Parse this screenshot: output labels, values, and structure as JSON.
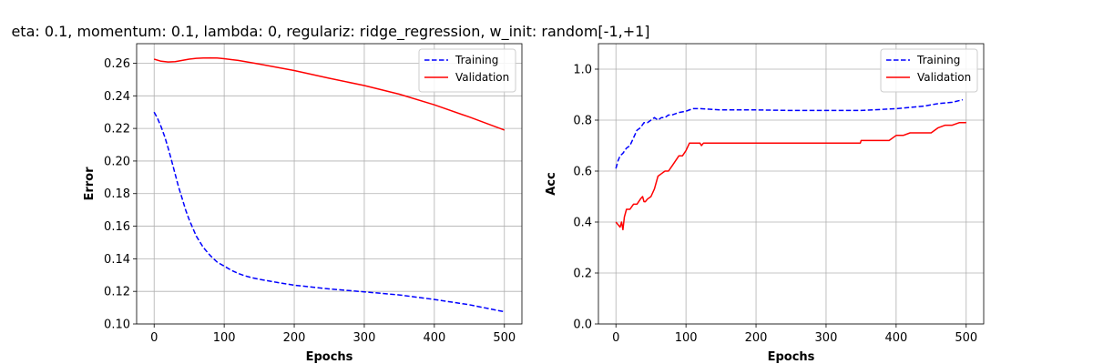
{
  "figure": {
    "title": "eta: 0.1, momentum: 0.1, lambda: 0, regulariz: ridge_regression, w_init: random[-1,+1]"
  },
  "chart_data": [
    {
      "type": "line",
      "xlabel": "Epochs",
      "ylabel": "Error",
      "xlim": [
        -25,
        525
      ],
      "ylim": [
        0.1,
        0.272
      ],
      "xticks": [
        0,
        100,
        200,
        300,
        400,
        500
      ],
      "yticks": [
        0.1,
        0.12,
        0.14,
        0.16,
        0.18,
        0.2,
        0.22,
        0.24,
        0.26
      ],
      "ytick_decimals": 2,
      "grid": true,
      "legend": "top-right",
      "series": [
        {
          "name": "Training",
          "color": "#0000ff",
          "style": "dashed",
          "x": [
            0,
            5,
            10,
            15,
            20,
            25,
            30,
            35,
            40,
            45,
            50,
            60,
            70,
            80,
            90,
            100,
            110,
            120,
            130,
            140,
            150,
            175,
            200,
            250,
            300,
            350,
            400,
            450,
            500
          ],
          "y": [
            0.23,
            0.226,
            0.221,
            0.215,
            0.208,
            0.2,
            0.192,
            0.184,
            0.177,
            0.17,
            0.164,
            0.154,
            0.147,
            0.142,
            0.138,
            0.1355,
            0.133,
            0.131,
            0.1295,
            0.1283,
            0.1274,
            0.1255,
            0.1238,
            0.1215,
            0.1197,
            0.1178,
            0.115,
            0.1118,
            0.1075
          ]
        },
        {
          "name": "Validation",
          "color": "#ff0000",
          "style": "solid",
          "x": [
            0,
            10,
            20,
            30,
            40,
            50,
            60,
            70,
            80,
            90,
            100,
            120,
            150,
            200,
            250,
            300,
            350,
            400,
            450,
            500
          ],
          "y": [
            0.2625,
            0.2612,
            0.2608,
            0.261,
            0.2617,
            0.2625,
            0.263,
            0.2632,
            0.2633,
            0.2632,
            0.2628,
            0.2617,
            0.2595,
            0.2555,
            0.2508,
            0.2463,
            0.241,
            0.2345,
            0.227,
            0.219
          ]
        }
      ]
    },
    {
      "type": "line",
      "xlabel": "Epochs",
      "ylabel": "Acc",
      "xlim": [
        -25,
        525
      ],
      "ylim": [
        0.0,
        1.1
      ],
      "xticks": [
        0,
        100,
        200,
        300,
        400,
        500
      ],
      "yticks": [
        0.0,
        0.2,
        0.4,
        0.6,
        0.8,
        1.0
      ],
      "ytick_decimals": 1,
      "grid": true,
      "legend": "top-right",
      "series": [
        {
          "name": "Training",
          "color": "#0000ff",
          "style": "dashed",
          "x": [
            0,
            3,
            6,
            10,
            15,
            20,
            25,
            30,
            35,
            40,
            45,
            50,
            55,
            60,
            65,
            70,
            75,
            80,
            90,
            100,
            110,
            120,
            150,
            200,
            250,
            300,
            350,
            380,
            400,
            420,
            440,
            460,
            480,
            495
          ],
          "y": [
            0.61,
            0.64,
            0.66,
            0.67,
            0.69,
            0.7,
            0.73,
            0.76,
            0.77,
            0.79,
            0.79,
            0.8,
            0.81,
            0.8,
            0.81,
            0.81,
            0.82,
            0.82,
            0.83,
            0.835,
            0.845,
            0.845,
            0.84,
            0.84,
            0.838,
            0.838,
            0.838,
            0.842,
            0.845,
            0.85,
            0.855,
            0.865,
            0.87,
            0.88
          ]
        },
        {
          "name": "Validation",
          "color": "#ff0000",
          "style": "solid",
          "x": [
            0,
            3,
            6,
            8,
            10,
            12,
            15,
            20,
            25,
            30,
            35,
            38,
            40,
            42,
            45,
            50,
            55,
            60,
            65,
            70,
            75,
            80,
            85,
            90,
            95,
            100,
            105,
            110,
            120,
            122,
            125,
            130,
            200,
            300,
            349,
            350,
            390,
            400,
            410,
            420,
            450,
            460,
            470,
            480,
            490,
            500
          ],
          "y": [
            0.4,
            0.39,
            0.38,
            0.4,
            0.37,
            0.42,
            0.45,
            0.45,
            0.47,
            0.47,
            0.49,
            0.5,
            0.48,
            0.48,
            0.49,
            0.5,
            0.53,
            0.58,
            0.59,
            0.6,
            0.6,
            0.62,
            0.64,
            0.66,
            0.66,
            0.68,
            0.71,
            0.71,
            0.71,
            0.7,
            0.71,
            0.71,
            0.71,
            0.71,
            0.71,
            0.72,
            0.72,
            0.74,
            0.74,
            0.75,
            0.75,
            0.77,
            0.78,
            0.78,
            0.79,
            0.79
          ]
        }
      ]
    }
  ]
}
